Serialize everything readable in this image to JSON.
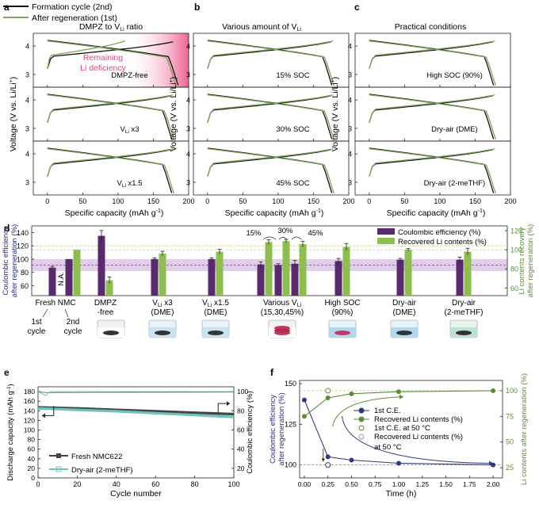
{
  "colors": {
    "black": "#111111",
    "green": "#7fa55b",
    "dark_green": "#5f8a3c",
    "purple": "#5b2a6e",
    "light_green": "#8cbf4e",
    "pink": "#e8457a",
    "navy": "#2e3a7d",
    "teal": "#6fc2b8",
    "band": "#c9a7d9"
  },
  "legend_top": {
    "formation": "Formation cycle (2nd)",
    "regeneration": "After regeneration (1st)"
  },
  "panels": {
    "a": {
      "letter": "a",
      "title": "DMPZ to V",
      "title_sub": "Li",
      "title_end": " ratio",
      "annotation_line1": "Remaining",
      "annotation_line2": "Li deficiency",
      "labels": [
        {
          "main": "DMPZ-free",
          "sub": ""
        },
        {
          "main": "V",
          "sub": "Li",
          "end": " x3"
        },
        {
          "main": "V",
          "sub": "Li",
          "end": " x1.5"
        }
      ]
    },
    "b": {
      "letter": "b",
      "title": "Various amount of V",
      "title_sub": "Li",
      "labels": [
        "15% SOC",
        "30% SOC",
        "45% SOC"
      ]
    },
    "c": {
      "letter": "c",
      "title": "Practical conditions",
      "labels": [
        "High SOC (90%)",
        "Dry-air (DME)",
        "Dry-air (2-meTHF)"
      ]
    },
    "xlabel": "Specific capacity (mAh g",
    "xlabel_sup": "-1",
    "ylabel": "Voltage (V vs. Li/Li",
    "ylabel_sup": "+",
    "x_ticks": [
      "0",
      "50",
      "100",
      "150",
      "200"
    ],
    "y_ticks": [
      "3",
      "4"
    ]
  },
  "panel_d": {
    "letter": "d",
    "ylabel_left": "Coulombic efficiency after regeneration (%)",
    "ylabel_right": "Li contents recovery after regeneration (%)",
    "left_ticks": [
      "60",
      "80",
      "100",
      "120",
      "140"
    ],
    "right_ticks": [
      "60",
      "80",
      "100",
      "120"
    ],
    "legend": [
      "Coulombic efficiency (%)",
      "Recovered Li contents (%)"
    ],
    "na_label": "N.A.",
    "pct_labels": [
      "15%",
      "30%",
      "45%"
    ],
    "groups": [
      {
        "l1": "Fresh NMC",
        "l2": ""
      },
      {
        "l1": "DMPZ",
        "l2": "-free"
      },
      {
        "l1": "V",
        "sub": "Li",
        "end": " x3",
        "l2": "(DME)"
      },
      {
        "l1": "V",
        "sub": "Li",
        "end": " x1.5",
        "l2": "(DME)"
      },
      {
        "l1": "Various V",
        "sub": "Li",
        "end": "",
        "l2": "(15,30,45%)"
      },
      {
        "l1": "High SOC",
        "l2": "(90%)"
      },
      {
        "l1": "Dry-air",
        "l2": "(DME)"
      },
      {
        "l1": "Dry-air",
        "l2": "(2-meTHF)"
      }
    ],
    "cycle_labels": [
      "1st",
      "cycle",
      "2nd",
      "cycle"
    ]
  },
  "panel_e": {
    "letter": "e",
    "ylabel_left": "Discharge capacity (mAh g",
    "ylabel_left_sup": "-1",
    "ylabel_right": "Coulombic efficiency (%)",
    "xlabel": "Cycle number",
    "x_ticks": [
      "0",
      "20",
      "40",
      "60",
      "80",
      "100"
    ],
    "left_ticks": [
      "0",
      "20",
      "40",
      "60",
      "80",
      "100",
      "120",
      "140",
      "160",
      "180"
    ],
    "right_ticks": [
      "20",
      "40",
      "60",
      "80",
      "100"
    ],
    "legend": [
      "Fresh NMC622",
      "Dry-air (2-meTHF)"
    ]
  },
  "panel_f": {
    "letter": "f",
    "ylabel_left": "Coulombic efficiency after regeneration (%)",
    "ylabel_right": "Li contents after regeneration (%)",
    "xlabel": "Time (h)",
    "x_ticks": [
      "0.00",
      "0.25",
      "0.50",
      "0.75",
      "1.00",
      "1.25",
      "1.50",
      "1.75",
      "2.00"
    ],
    "left_ticks": [
      "100",
      "125",
      "150"
    ],
    "right_ticks": [
      "25",
      "50",
      "75",
      "100"
    ],
    "legend": [
      "1st C.E.",
      "Recovered Li contents (%)",
      "1st C.E. at 50 °C",
      "Recovered Li contents (%)",
      "at 50 °C"
    ]
  },
  "chart_data": [
    {
      "type": "line",
      "title": "DMPZ to VLi ratio / Various amount of VLi / Practical conditions",
      "xlabel": "Specific capacity (mAh g-1)",
      "ylabel": "Voltage (V vs. Li/Li+)",
      "xlim": [
        -20,
        200
      ],
      "ylim_each": [
        2.5,
        4.4
      ],
      "series": [
        {
          "name": "Formation cycle (2nd)",
          "charge_end": 178,
          "discharge_end": 178
        },
        {
          "name": "After regeneration (1st)",
          "charge_end": 180,
          "discharge_end": 176
        }
      ]
    },
    {
      "type": "bar",
      "categories": [
        "Fresh NMC 1st cycle",
        "Fresh NMC 2nd cycle",
        "DMPZ-free",
        "VLi x3 (DME)",
        "VLi x1.5 (DME)",
        "15% SOC",
        "30% SOC",
        "45% SOC",
        "High SOC (90%)",
        "Dry-air (DME)",
        "Dry-air (2-meTHF)"
      ],
      "series": [
        {
          "name": "Coulombic efficiency (%)",
          "values": [
            87,
            100,
            135,
            100,
            100,
            92,
            91,
            93,
            97,
            99,
            99
          ]
        },
        {
          "name": "Recovered Li contents (%)",
          "values": [
            null,
            100,
            68,
            96,
            98,
            108,
            109,
            106,
            103,
            100,
            98
          ]
        }
      ],
      "ylim_left": [
        45,
        150
      ],
      "ylim_right": [
        52,
        125
      ]
    },
    {
      "type": "line",
      "xlabel": "Cycle number",
      "xlim": [
        0,
        100
      ],
      "ylim": [
        0,
        190
      ],
      "series": [
        {
          "name": "Fresh NMC622",
          "x": [
            0,
            20,
            40,
            60,
            80,
            100
          ],
          "y": [
            147,
            145,
            142,
            139,
            136,
            133
          ]
        },
        {
          "name": "Dry-air (2-meTHF)",
          "x": [
            0,
            20,
            40,
            60,
            80,
            100
          ],
          "y": [
            145,
            142,
            139,
            135,
            131,
            127
          ]
        }
      ]
    },
    {
      "type": "scatter",
      "xlabel": "Time (h)",
      "xlim": [
        0,
        2.1
      ],
      "series": [
        {
          "name": "1st C.E.",
          "x": [
            0.0,
            0.25,
            0.5,
            1.0,
            2.0
          ],
          "y": [
            140,
            105,
            103,
            101,
            100
          ]
        },
        {
          "name": "Recovered Li contents (%)",
          "x": [
            0.0,
            0.25,
            0.5,
            1.0,
            2.0
          ],
          "y": [
            75,
            93,
            97,
            99,
            100
          ]
        },
        {
          "name": "1st C.E. at 50 °C",
          "x": [
            0.25
          ],
          "y": [
            100
          ]
        },
        {
          "name": "Recovered Li contents (%) at 50 °C",
          "x": [
            0.25
          ],
          "y": [
            100
          ]
        }
      ]
    }
  ]
}
